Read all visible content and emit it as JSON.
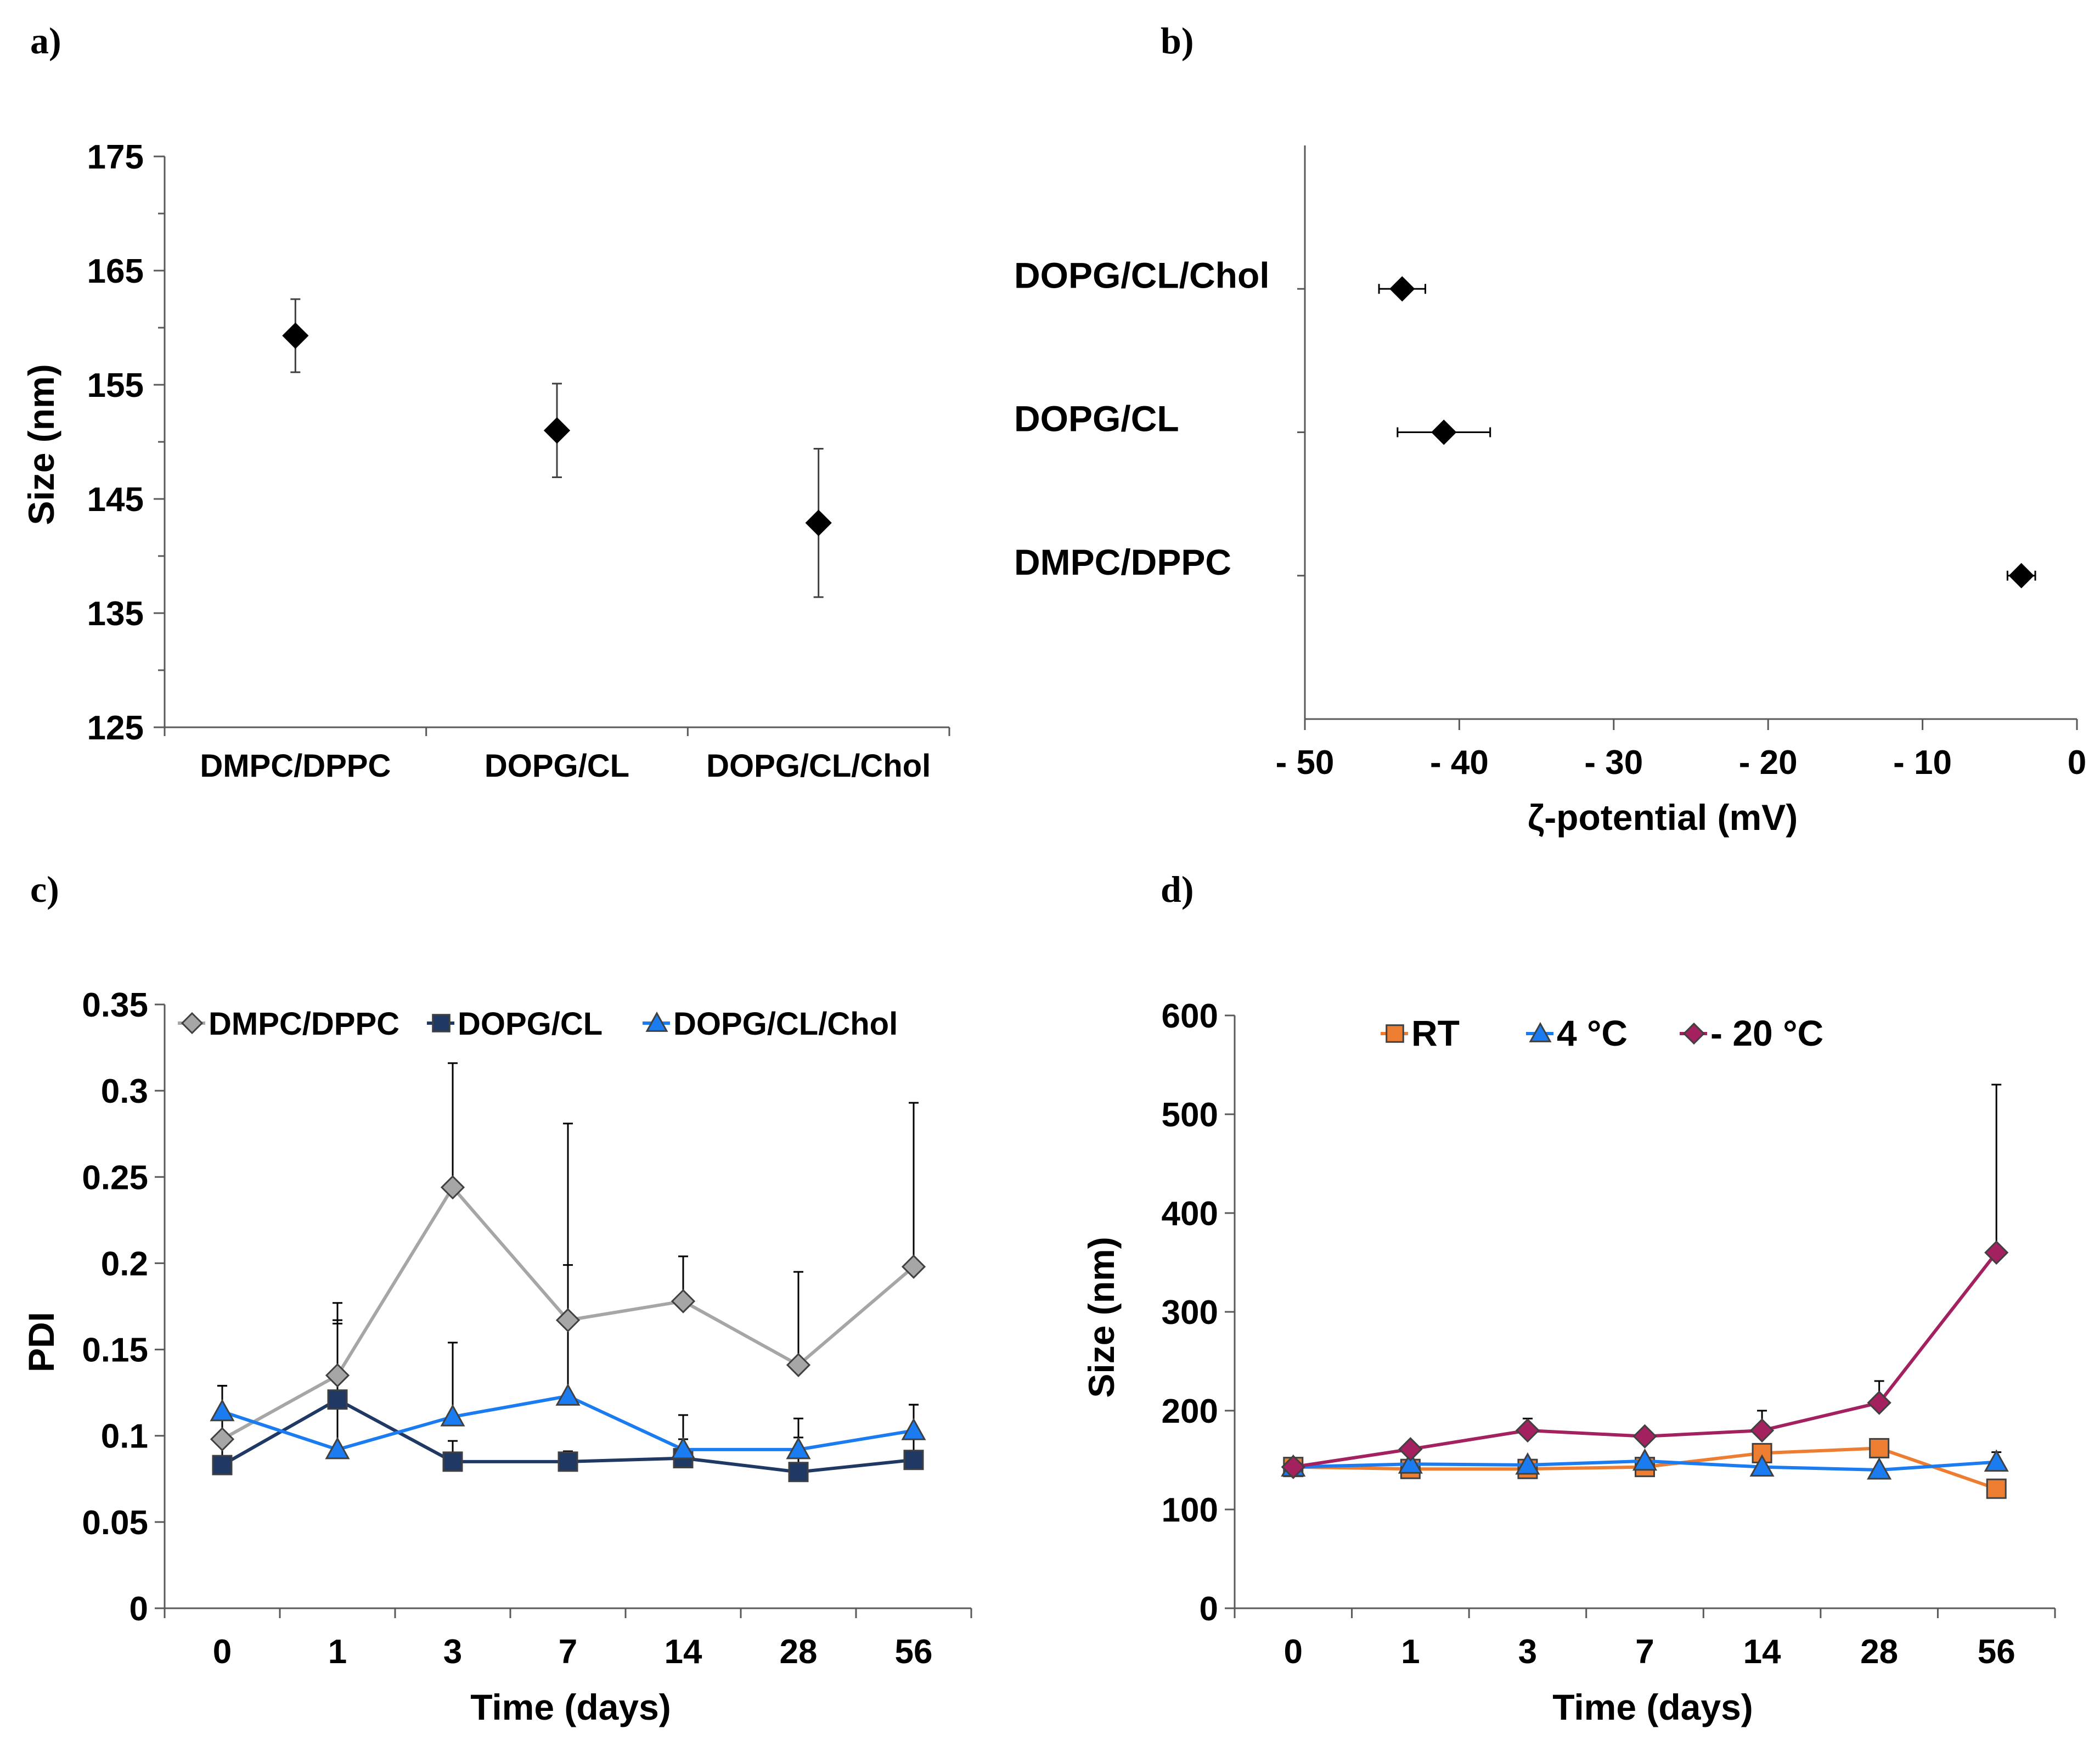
{
  "chart_data": [
    {
      "panel": "a)",
      "type": "scatter",
      "categories": [
        "DMPC/DPPC",
        "DOPG/CL",
        "DOPG/CL/Chol"
      ],
      "values": [
        159.3,
        151.0,
        142.9
      ],
      "errors": [
        3.2,
        4.1,
        6.5
      ],
      "ylabel": "Size (nm)",
      "xlabel": "",
      "ylim": [
        125,
        175
      ],
      "yticks": [
        "125",
        "135",
        "145",
        "155",
        "165",
        "175"
      ]
    },
    {
      "panel": "b)",
      "type": "scatter",
      "orientation": "horizontal",
      "categories": [
        "DMPC/DPPC",
        "DOPG/CL",
        "DOPG/CL/Chol"
      ],
      "values": [
        -3.6,
        -41.0,
        -43.7
      ],
      "errors": [
        0.9,
        3.0,
        1.5
      ],
      "xlabel": "ζ-potential (mV)",
      "xlim": [
        -50,
        0
      ],
      "xticks": [
        "- 50",
        "- 40",
        "- 30",
        "- 20",
        "- 10",
        "0"
      ]
    },
    {
      "panel": "c)",
      "type": "line",
      "categories": [
        "0",
        "1",
        "3",
        "7",
        "14",
        "28",
        "56"
      ],
      "xlabel": "Time (days)",
      "ylabel": "PDI",
      "ylim": [
        0,
        0.35
      ],
      "yticks": [
        "0",
        "0.05",
        "0.1",
        "0.15",
        "0.2",
        "0.25",
        "0.3",
        "0.35"
      ],
      "series": [
        {
          "name": "DMPC/DPPC",
          "color": "#a6a6a6",
          "marker": "diamond",
          "values": [
            0.098,
            0.135,
            0.244,
            0.167,
            0.178,
            0.141,
            0.198
          ],
          "err_up": [
            0.031,
            0.032,
            0.072,
            0.032,
            0.026,
            0.054,
            0.095
          ]
        },
        {
          "name": "DOPG/CL",
          "color": "#1f3864",
          "marker": "square",
          "values": [
            0.083,
            0.121,
            0.085,
            0.085,
            0.087,
            0.079,
            0.086
          ],
          "err_up": [
            0.046,
            0.056,
            0.012,
            0.006,
            0.025,
            0.031,
            0.032
          ]
        },
        {
          "name": "DOPG/CL/Chol",
          "color": "#1a7cf0",
          "marker": "triangle",
          "values": [
            0.114,
            0.092,
            0.111,
            0.123,
            0.092,
            0.092,
            0.103
          ],
          "err_up": [
            0.015,
            0.073,
            0.043,
            0.158,
            0.006,
            0.007,
            0.015
          ]
        }
      ]
    },
    {
      "panel": "d)",
      "type": "line",
      "categories": [
        "0",
        "1",
        "3",
        "7",
        "14",
        "28",
        "56"
      ],
      "xlabel": "Time (days)",
      "ylabel": "Size (nm)",
      "ylim": [
        0,
        600
      ],
      "yticks": [
        "0",
        "100",
        "200",
        "300",
        "400",
        "500",
        "600"
      ],
      "series": [
        {
          "name": "RT",
          "color": "#ed7d31",
          "marker": "square",
          "values": [
            143,
            141,
            141,
            143,
            157,
            162,
            121
          ],
          "err_up": [
            0,
            0,
            0,
            0,
            0,
            0,
            0
          ]
        },
        {
          "name": "4 °C",
          "color": "#1a7cf0",
          "marker": "triangle",
          "values": [
            143,
            146,
            145,
            149,
            143,
            140,
            148
          ],
          "err_up": [
            0,
            0,
            0,
            0,
            0,
            0,
            10
          ]
        },
        {
          "name": "- 20 °C",
          "color": "#a3215f",
          "marker": "diamond",
          "values": [
            143,
            161,
            180,
            174,
            180,
            208,
            360
          ],
          "err_up": [
            0,
            0,
            12,
            0,
            20,
            22,
            170
          ]
        }
      ]
    }
  ]
}
